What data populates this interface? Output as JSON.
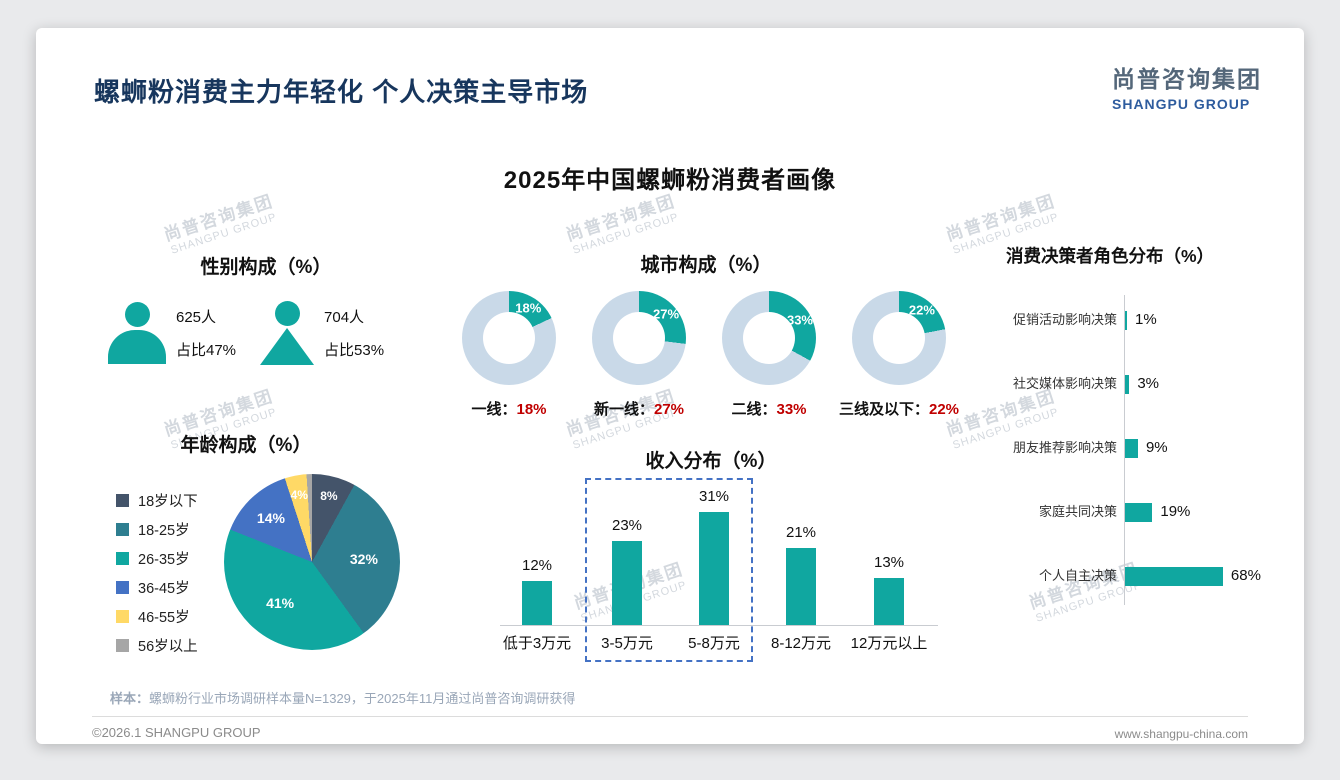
{
  "page": {
    "title": "螺蛳粉消费主力年轻化 个人决策主导市场",
    "logo": {
      "name": "尚普咨询集团",
      "sub": "SHANGPU GROUP"
    },
    "main_title": "2025年中国螺蛳粉消费者画像",
    "watermark": {
      "line1": "尚普咨询集团",
      "line2": "SHANGPU GROUP"
    },
    "footnote_prefix": "样本：",
    "footnote_text": "螺蛳粉行业市场调研样本量N=1329，于2025年11月通过尚普咨询调研获得",
    "footer_left": "©2026.1 SHANGPU GROUP",
    "footer_right": "www.shangpu-china.com"
  },
  "colors": {
    "teal": "#10A7A0",
    "donut_rest": "#C9D9E8",
    "accent_red": "#C00000",
    "title_navy": "#17365D"
  },
  "chart_data": [
    {
      "id": "gender",
      "type": "pictogram",
      "title": "性别构成（%）",
      "items": [
        {
          "icon": "male-icon",
          "count": "625人",
          "share": "占比47%"
        },
        {
          "icon": "female-icon",
          "count": "704人",
          "share": "占比53%"
        }
      ]
    },
    {
      "id": "city",
      "type": "pie",
      "title": "城市构成（%）",
      "donuts": [
        {
          "label": "一线",
          "value": 18
        },
        {
          "label": "新一线",
          "value": 27
        },
        {
          "label": "二线",
          "value": 33
        },
        {
          "label": "三线及以下",
          "value": 22
        }
      ]
    },
    {
      "id": "age",
      "type": "pie",
      "title": "年龄构成（%）",
      "categories": [
        "18岁以下",
        "18-25岁",
        "26-35岁",
        "36-45岁",
        "46-55岁",
        "56岁以上"
      ],
      "values": [
        8,
        32,
        41,
        14,
        4,
        1
      ],
      "colors": [
        "#44546A",
        "#2E7E90",
        "#10A7A0",
        "#4472C4",
        "#FFD966",
        "#A6A6A6"
      ]
    },
    {
      "id": "income",
      "type": "bar",
      "title": "收入分布（%）",
      "categories": [
        "低于3万元",
        "3-5万元",
        "5-8万元",
        "8-12万元",
        "12万元以上"
      ],
      "values": [
        12,
        23,
        31,
        21,
        13
      ],
      "highlighted": [
        "3-5万元",
        "5-8万元"
      ]
    },
    {
      "id": "decision",
      "type": "bar",
      "orientation": "horizontal",
      "title": "消费决策者角色分布（%）",
      "categories": [
        "促销活动影响决策",
        "社交媒体影响决策",
        "朋友推荐影响决策",
        "家庭共同决策",
        "个人自主决策"
      ],
      "values": [
        1,
        3,
        9,
        19,
        68
      ]
    }
  ]
}
